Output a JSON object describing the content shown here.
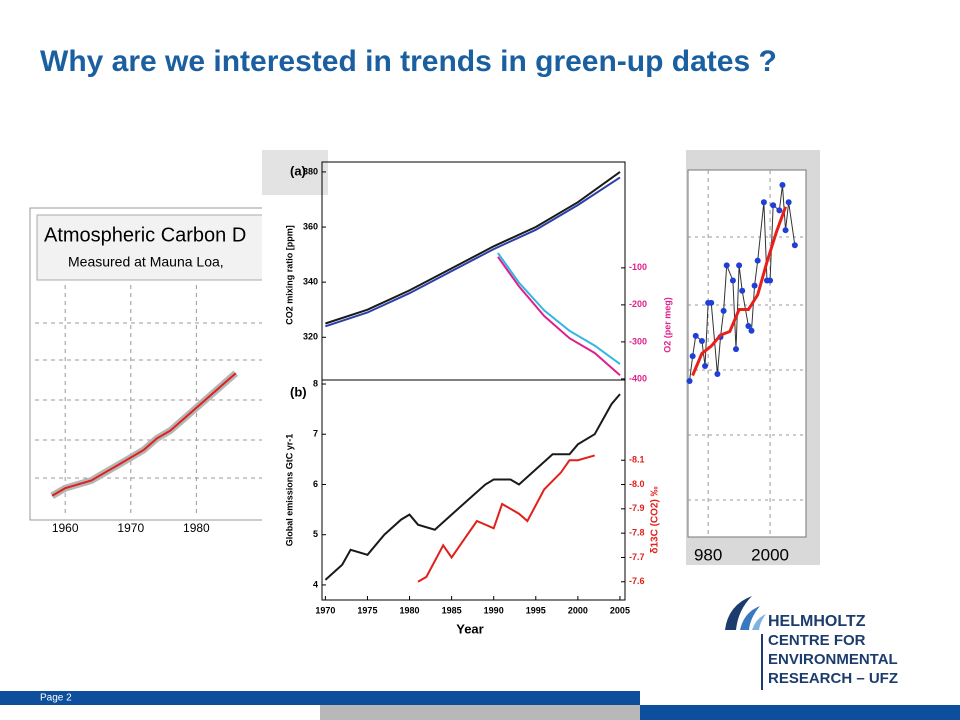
{
  "title": "Why are we interested in trends in green-up dates ?",
  "page_label": "Page 2",
  "logo": {
    "name": "HELMHOLTZ",
    "lines": [
      "CENTRE FOR",
      "ENVIRONMENTAL",
      "RESEARCH – UFZ"
    ]
  },
  "chart_data": [
    {
      "type": "line",
      "title": "Atmospheric Carbon D",
      "subtitle": "Measured at Mauna Loa,",
      "x": [
        1958,
        1960,
        1962,
        1964,
        1966,
        1968,
        1970,
        1972,
        1974,
        1976,
        1978,
        1980,
        1982,
        1984,
        1986
      ],
      "series": [
        {
          "color": "#e0201b",
          "values": [
            315,
            317,
            318,
            319,
            321,
            323,
            325,
            327,
            330,
            332,
            335,
            338,
            341,
            344,
            347
          ]
        }
      ],
      "xlim": [
        1955.4,
        1990
      ],
      "ylim": [
        310,
        370
      ],
      "xticks": [
        1960,
        1970,
        1980
      ],
      "grid": true
    },
    {
      "type": "line",
      "panel_label": "(a)",
      "ylabel": "CO2 mixing ratio [ppm]",
      "y2label": "O2 (per meg)",
      "series": [
        {
          "color": "#1a1a1a",
          "x": [
            1970,
            1975,
            1980,
            1985,
            1990,
            1995,
            2000,
            2005
          ],
          "values": [
            325,
            330,
            337,
            345,
            353,
            360,
            369,
            380
          ]
        },
        {
          "color": "#2b3fa8",
          "x": [
            1970,
            1975,
            1980,
            1985,
            1990,
            1995,
            2000,
            2005
          ],
          "values": [
            324,
            329,
            336,
            344,
            352,
            359,
            368,
            378
          ]
        },
        {
          "color": "#e0208a",
          "axis": "y2",
          "x": [
            1990.5,
            1993,
            1996,
            1999,
            2002,
            2005
          ],
          "values": [
            -70,
            -150,
            -230,
            -290,
            -330,
            -390
          ]
        },
        {
          "color": "#33b5e5",
          "axis": "y2",
          "x": [
            1990.5,
            1993,
            1996,
            1999,
            2002,
            2005
          ],
          "values": [
            -60,
            -140,
            -215,
            -270,
            -310,
            -360
          ]
        }
      ],
      "xlim": [
        1969.6,
        2005.6
      ],
      "ylim": [
        304.5,
        383.6
      ],
      "yticks": [
        320,
        340,
        360,
        380
      ],
      "y2lim": [
        -403,
        186
      ],
      "y2ticks": [
        -100,
        -200,
        -300,
        -400
      ]
    },
    {
      "type": "line",
      "panel_label": "(b)",
      "xlabel": "Year",
      "ylabel": "Global emissions GtC yr-1",
      "y2label": "δ13C (CO2) ‰",
      "series": [
        {
          "color": "#1a1a1a",
          "x": [
            1970,
            1972,
            1973,
            1975,
            1977,
            1979,
            1980,
            1981,
            1983,
            1985,
            1987,
            1989,
            1990,
            1992,
            1993,
            1995,
            1997,
            1999,
            2000,
            2002,
            2004,
            2005
          ],
          "values": [
            4.1,
            4.4,
            4.7,
            4.6,
            5.0,
            5.3,
            5.4,
            5.2,
            5.1,
            5.4,
            5.7,
            6.0,
            6.1,
            6.1,
            6.0,
            6.3,
            6.6,
            6.6,
            6.8,
            7.0,
            7.6,
            7.8
          ]
        },
        {
          "color": "#e0201b",
          "axis": "y2",
          "x": [
            1981,
            1982,
            1984,
            1985,
            1986,
            1988,
            1990,
            1991,
            1993,
            1994,
            1996,
            1998,
            1999,
            2000,
            2002
          ],
          "values": [
            -7.6,
            -7.62,
            -7.75,
            -7.7,
            -7.75,
            -7.85,
            -7.82,
            -7.92,
            -7.88,
            -7.85,
            -7.98,
            -8.05,
            -8.1,
            -8.1,
            -8.12
          ]
        }
      ],
      "xlim": [
        1969.6,
        2005.6
      ],
      "xticks": [
        1970,
        1975,
        1980,
        1985,
        1990,
        1995,
        2000,
        2005
      ],
      "ylim": [
        3.7,
        8.08
      ],
      "yticks": [
        4,
        5,
        6,
        7,
        8
      ],
      "y2lim": [
        -7.525,
        -8.43
      ],
      "y2ticks": [
        -8.1,
        {
          "value": -8,
          "label": "-8.0"
        },
        -7.9,
        -7.8,
        -7.7,
        -7.6
      ]
    },
    {
      "type": "line",
      "series": [
        {
          "color": "#1f3fd6",
          "style": "markers",
          "x": [
            1974,
            1975,
            1976,
            1978,
            1979,
            1980,
            1981,
            1983,
            1984,
            1985,
            1986,
            1988,
            1989,
            1990,
            1991,
            1993,
            1994,
            1995,
            1996,
            1998,
            1999,
            2000,
            2001,
            2003,
            2004,
            2005,
            2006,
            2008
          ],
          "values": [
            4.25,
            4.93,
            5.48,
            5.34,
            4.66,
            6.38,
            6.38,
            4.44,
            5.45,
            6.16,
            7.4,
            6.99,
            5.12,
            7.4,
            6.71,
            5.75,
            5.62,
            6.85,
            7.53,
            9.12,
            6.99,
            6.99,
            9.04,
            8.9,
            9.59,
            8.36,
            9.12,
            7.95
          ]
        },
        {
          "color": "#e8201b",
          "style": "line",
          "x": [
            1975,
            1978,
            1981,
            1984,
            1987,
            1990,
            1993,
            1996,
            1999,
            2002,
            2005
          ],
          "values": [
            4.4,
            5.0,
            5.2,
            5.5,
            5.6,
            6.2,
            6.2,
            6.6,
            7.5,
            8.3,
            9.0
          ]
        }
      ],
      "xlim": [
        1973.5,
        2011.6
      ],
      "ylim": [
        0,
        10
      ],
      "xticks": [
        {
          "value": 1980,
          "label": "980"
        },
        2000
      ],
      "grid": true
    }
  ]
}
